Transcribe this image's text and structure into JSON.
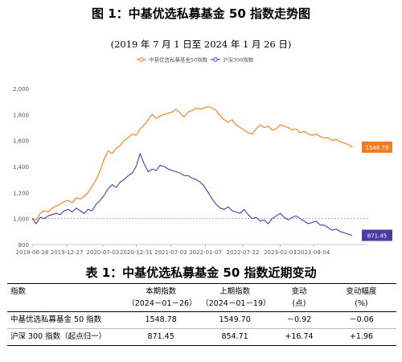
{
  "figure": {
    "title": "图 1：中基优选私募基金 50 指数走势图",
    "subtitle": "(2019 年 7 月 1 日至 2024 年 1 月 26 日)"
  },
  "colors": {
    "fund": "#f47a1f",
    "hs300": "#4b3ca3",
    "ref": "#999999"
  },
  "chart_data": {
    "type": "line",
    "x_tick_labels": [
      "2019-06-28",
      "2019-12-27",
      "2020-07-03",
      "2020-12-31",
      "2021-07-02",
      "2022-01-07",
      "2022-07-22",
      "2023-02-03",
      "2023-08-04"
    ],
    "x_tick_positions": [
      0,
      26,
      53,
      78,
      104,
      130,
      158,
      186,
      211
    ],
    "x_range": [
      0,
      240
    ],
    "ylim": [
      800,
      2000
    ],
    "y_ticks": [
      "800",
      "1,000",
      "1,200",
      "1,400",
      "1,600",
      "1,800",
      "2,000"
    ],
    "y_tick_values": [
      800,
      1000,
      1200,
      1400,
      1600,
      1800,
      2000
    ],
    "reference_line": 1000,
    "legend_position": "top",
    "series": [
      {
        "name": "中基优选私募基金50指数",
        "end_label": "1548.78",
        "x": [
          0,
          3,
          6,
          9,
          12,
          15,
          18,
          21,
          24,
          27,
          30,
          33,
          36,
          39,
          42,
          45,
          48,
          51,
          54,
          57,
          60,
          63,
          66,
          69,
          72,
          75,
          78,
          81,
          84,
          87,
          90,
          93,
          96,
          99,
          102,
          105,
          108,
          111,
          114,
          117,
          120,
          123,
          126,
          129,
          132,
          135,
          138,
          141,
          144,
          147,
          150,
          153,
          156,
          159,
          162,
          165,
          168,
          171,
          174,
          177,
          180,
          183,
          186,
          189,
          192,
          195,
          198,
          201,
          204,
          207,
          210,
          213,
          216,
          219,
          222,
          225,
          228,
          231,
          234,
          237,
          240
        ],
        "values": [
          1000,
          990,
          1040,
          1060,
          1050,
          1080,
          1095,
          1110,
          1130,
          1140,
          1120,
          1160,
          1150,
          1170,
          1200,
          1250,
          1300,
          1370,
          1460,
          1520,
          1500,
          1540,
          1560,
          1600,
          1620,
          1650,
          1640,
          1690,
          1720,
          1760,
          1800,
          1770,
          1790,
          1800,
          1810,
          1820,
          1840,
          1810,
          1780,
          1820,
          1830,
          1850,
          1840,
          1850,
          1860,
          1850,
          1830,
          1790,
          1760,
          1740,
          1760,
          1720,
          1700,
          1680,
          1660,
          1650,
          1690,
          1720,
          1700,
          1710,
          1680,
          1690,
          1720,
          1710,
          1700,
          1680,
          1690,
          1660,
          1670,
          1650,
          1640,
          1650,
          1630,
          1620,
          1620,
          1600,
          1610,
          1590,
          1580,
          1570,
          1549
        ]
      },
      {
        "name": "沪深300指数",
        "end_label": "871.45",
        "x": [
          0,
          3,
          6,
          9,
          12,
          15,
          18,
          21,
          24,
          27,
          30,
          33,
          36,
          39,
          42,
          45,
          48,
          51,
          54,
          57,
          60,
          63,
          66,
          69,
          72,
          75,
          78,
          81,
          84,
          87,
          90,
          93,
          96,
          99,
          102,
          105,
          108,
          111,
          114,
          117,
          120,
          123,
          126,
          129,
          132,
          135,
          138,
          141,
          144,
          147,
          150,
          153,
          156,
          159,
          162,
          165,
          168,
          171,
          174,
          177,
          180,
          183,
          186,
          189,
          192,
          195,
          198,
          201,
          204,
          207,
          210,
          213,
          216,
          219,
          222,
          225,
          228,
          231,
          234,
          237,
          240
        ],
        "values": [
          1000,
          960,
          1010,
          1000,
          1020,
          1030,
          1040,
          1030,
          1060,
          1070,
          1050,
          1080,
          1060,
          1040,
          1070,
          1060,
          1110,
          1140,
          1180,
          1230,
          1260,
          1240,
          1280,
          1300,
          1330,
          1350,
          1400,
          1500,
          1420,
          1360,
          1380,
          1370,
          1410,
          1400,
          1380,
          1370,
          1360,
          1350,
          1330,
          1330,
          1310,
          1300,
          1280,
          1250,
          1200,
          1150,
          1110,
          1080,
          1070,
          1090,
          1060,
          1050,
          1040,
          1070,
          1030,
          1000,
          1010,
          980,
          990,
          960,
          1000,
          1020,
          1040,
          1010,
          990,
          1010,
          1020,
          1000,
          980,
          960,
          970,
          980,
          950,
          950,
          930,
          910,
          920,
          900,
          890,
          880,
          871
        ]
      }
    ]
  },
  "table": {
    "title": "表 1：中基优选私募基金 50 指数近期变动",
    "headers": [
      {
        "l1": "指数",
        "l2": ""
      },
      {
        "l1": "本期指数",
        "l2": "（2024－01－26）"
      },
      {
        "l1": "上期指数",
        "l2": "（2024－01－19）"
      },
      {
        "l1": "变动",
        "l2": "(点)"
      },
      {
        "l1": "变动幅度",
        "l2": "(%)"
      }
    ],
    "rows": [
      [
        "中基优选私募基金 50 指数",
        "1548.78",
        "1549.70",
        "－0.92",
        "－0.06"
      ],
      [
        "沪深 300 指数（起点归一）",
        "871.45",
        "854.71",
        "+16.74",
        "+1.96"
      ]
    ]
  }
}
